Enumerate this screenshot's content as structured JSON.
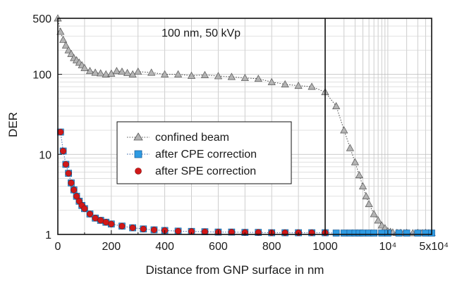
{
  "chart_data": {
    "type": "scatter",
    "title": "",
    "annotation": "100 nm, 50 kVp",
    "xlabel": "Distance from GNP surface in nm",
    "ylabel": "DER",
    "yscale": "log",
    "ylim": [
      1,
      500
    ],
    "y_ticks": [
      1,
      10,
      100,
      500
    ],
    "y_tick_labels": [
      "1",
      "10",
      "100",
      "500"
    ],
    "x_axis_segments": [
      {
        "scale": "linear",
        "range": [
          0,
          1000
        ],
        "ticks": [
          0,
          200,
          400,
          600,
          800,
          1000
        ],
        "tick_labels": [
          "0",
          "200",
          "400",
          "600",
          "800",
          "1000"
        ]
      },
      {
        "scale": "log",
        "range": [
          1000,
          50000
        ],
        "ticks": [
          10000,
          50000
        ],
        "tick_labels": [
          "10⁴",
          "5x10⁴"
        ]
      }
    ],
    "grid": true,
    "legend_position": "center-left",
    "series": [
      {
        "name": "confined beam",
        "marker": "triangle",
        "color": "#b4b4b4",
        "line_style": "dotted",
        "x": [
          0,
          10,
          20,
          30,
          40,
          50,
          60,
          70,
          80,
          90,
          100,
          120,
          140,
          160,
          180,
          200,
          220,
          240,
          260,
          280,
          300,
          350,
          400,
          450,
          500,
          550,
          600,
          650,
          700,
          750,
          800,
          850,
          900,
          950,
          1000,
          1500,
          2000,
          2500,
          3000,
          3500,
          4000,
          4500,
          5000,
          6000,
          7000,
          8000,
          9000,
          10000,
          11000,
          12000,
          14000,
          16000,
          18000,
          20000,
          25000,
          30000,
          35000,
          40000,
          45000,
          50000
        ],
        "y": [
          500,
          340,
          270,
          230,
          200,
          180,
          160,
          150,
          140,
          130,
          120,
          110,
          105,
          103,
          100,
          102,
          110,
          108,
          104,
          100,
          108,
          105,
          100,
          100,
          96,
          98,
          95,
          93,
          90,
          88,
          80,
          75,
          72,
          70,
          60,
          40,
          20,
          12,
          8,
          5.5,
          4,
          3,
          2.4,
          1.8,
          1.5,
          1.3,
          1.2,
          1.1,
          1.08,
          1.06,
          1.05,
          1.05,
          1.04,
          1.05,
          1.04,
          1.05,
          1.04,
          1.05,
          1.04,
          1.05
        ]
      },
      {
        "name": "after CPE correction",
        "marker": "square",
        "color": "#2e9be3",
        "line_style": "dotted",
        "x": [
          10,
          20,
          30,
          40,
          50,
          60,
          70,
          80,
          90,
          100,
          120,
          140,
          160,
          180,
          200,
          240,
          280,
          320,
          360,
          400,
          450,
          500,
          550,
          600,
          650,
          700,
          750,
          800,
          850,
          900,
          950,
          1000,
          1500,
          2000,
          2500,
          3000,
          3500,
          4000,
          5000,
          6000,
          8000,
          10000,
          15000,
          20000,
          30000,
          40000,
          50000
        ],
        "y": [
          19,
          11,
          7.5,
          5.8,
          4.4,
          3.6,
          3.0,
          2.6,
          2.3,
          2.1,
          1.8,
          1.6,
          1.5,
          1.42,
          1.35,
          1.27,
          1.21,
          1.17,
          1.14,
          1.12,
          1.1,
          1.09,
          1.08,
          1.07,
          1.07,
          1.06,
          1.06,
          1.05,
          1.05,
          1.05,
          1.05,
          1.05,
          1.04,
          1.04,
          1.04,
          1.04,
          1.04,
          1.04,
          1.04,
          1.04,
          1.04,
          1.04,
          1.04,
          1.04,
          1.04,
          1.04,
          1.04
        ]
      },
      {
        "name": "after SPE correction",
        "marker": "circle",
        "color": "#d01818",
        "line_style": "none",
        "x": [
          10,
          20,
          30,
          40,
          50,
          60,
          70,
          80,
          90,
          100,
          120,
          140,
          160,
          180,
          200,
          240,
          280,
          320,
          360,
          400,
          450,
          500,
          550,
          600,
          650,
          700,
          750,
          800,
          850,
          900,
          950,
          1000
        ],
        "y": [
          19,
          11,
          7.5,
          5.8,
          4.4,
          3.6,
          3.0,
          2.6,
          2.3,
          2.1,
          1.8,
          1.6,
          1.5,
          1.42,
          1.35,
          1.27,
          1.21,
          1.17,
          1.14,
          1.12,
          1.1,
          1.09,
          1.08,
          1.07,
          1.07,
          1.06,
          1.06,
          1.05,
          1.05,
          1.05,
          1.05,
          1.05
        ]
      }
    ]
  }
}
